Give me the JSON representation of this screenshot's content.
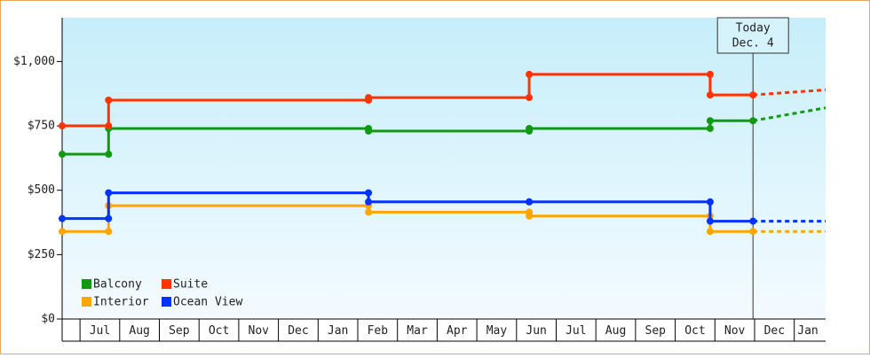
{
  "chart_data": {
    "type": "step-line",
    "xlim": [
      -0.45,
      18.79
    ],
    "xticks": [
      {
        "value": 0,
        "label": "Jul"
      },
      {
        "value": 1,
        "label": "Aug"
      },
      {
        "value": 2,
        "label": "Sep"
      },
      {
        "value": 3,
        "label": "Oct"
      },
      {
        "value": 4,
        "label": "Nov"
      },
      {
        "value": 5,
        "label": "Dec"
      },
      {
        "value": 6,
        "label": "Jan"
      },
      {
        "value": 7,
        "label": "Feb"
      },
      {
        "value": 8,
        "label": "Mar"
      },
      {
        "value": 9,
        "label": "Apr"
      },
      {
        "value": 10,
        "label": "May"
      },
      {
        "value": 11,
        "label": "Jun"
      },
      {
        "value": 12,
        "label": "Jul"
      },
      {
        "value": 13,
        "label": "Aug"
      },
      {
        "value": 14,
        "label": "Sep"
      },
      {
        "value": 15,
        "label": "Oct"
      },
      {
        "value": 16,
        "label": "Nov"
      },
      {
        "value": 17,
        "label": "Dec"
      },
      {
        "value": 18,
        "label": "Jan"
      }
    ],
    "ylim": [
      0,
      1170
    ],
    "yticks": [
      {
        "value": 0,
        "label": "$0"
      },
      {
        "value": 250,
        "label": "$250"
      },
      {
        "value": 500,
        "label": "$500"
      },
      {
        "value": 750,
        "label": "$750"
      },
      {
        "value": 1000,
        "label": "$1,000"
      }
    ],
    "today": {
      "x": 16.96,
      "label": [
        "Today",
        "Dec. 4"
      ]
    },
    "legend": "bottom-left",
    "series": [
      {
        "name": "Balcony",
        "color": "#119911",
        "x": [
          -0.45,
          0.72,
          0.72,
          7.27,
          7.27,
          11.32,
          11.32,
          15.88,
          15.88,
          16.96
        ],
        "values": [
          640,
          640,
          740,
          740,
          730,
          730,
          740,
          740,
          770,
          770
        ],
        "forecast_x": [
          16.96,
          18.79
        ],
        "forecast_values": [
          770,
          820
        ]
      },
      {
        "name": "Suite",
        "color": "#ff3300",
        "x": [
          -0.45,
          0.72,
          0.72,
          7.27,
          7.27,
          11.32,
          11.32,
          15.88,
          15.88,
          16.96
        ],
        "values": [
          750,
          750,
          850,
          850,
          860,
          860,
          950,
          950,
          870,
          870
        ],
        "forecast_x": [
          16.96,
          18.79
        ],
        "forecast_values": [
          870,
          890
        ]
      },
      {
        "name": "Interior",
        "color": "#ffa500",
        "x": [
          -0.45,
          0.72,
          0.72,
          7.27,
          7.27,
          11.32,
          11.32,
          15.88,
          15.88,
          16.96
        ],
        "values": [
          340,
          340,
          440,
          440,
          415,
          415,
          400,
          400,
          340,
          340
        ],
        "forecast_x": [
          16.96,
          18.79
        ],
        "forecast_values": [
          340,
          340
        ]
      },
      {
        "name": "Ocean View",
        "color": "#0033ff",
        "x": [
          -0.45,
          0.72,
          0.72,
          7.27,
          7.27,
          11.32,
          11.32,
          15.88,
          15.88,
          16.96
        ],
        "values": [
          390,
          390,
          490,
          490,
          455,
          455,
          455,
          455,
          380,
          380
        ],
        "forecast_x": [
          16.96,
          18.79
        ],
        "forecast_values": [
          380,
          380
        ]
      }
    ]
  }
}
